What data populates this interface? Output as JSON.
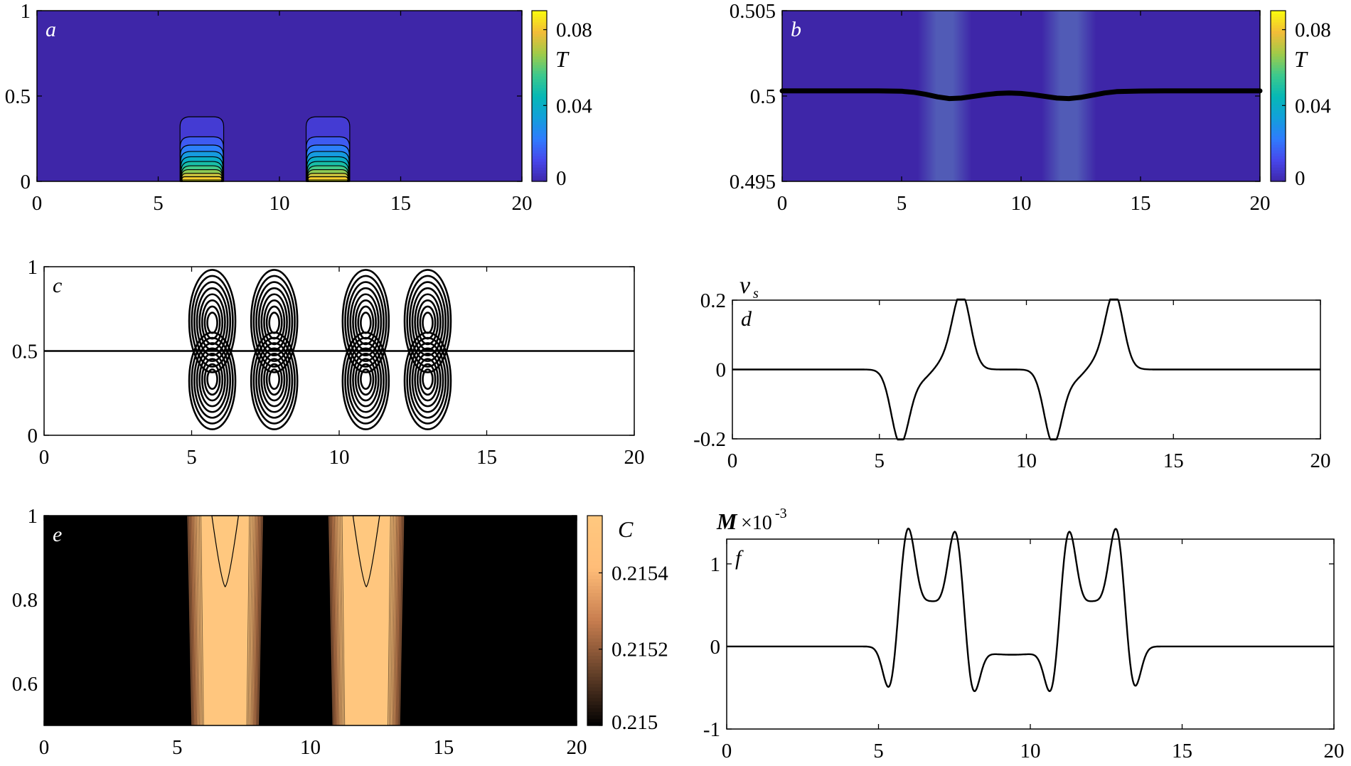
{
  "figure": "Six-panel simulation figure (a-f)",
  "chart_data": [
    {
      "panel": "a",
      "type": "heatmap",
      "label": "a",
      "title": "",
      "xlabel": "",
      "ylabel": "",
      "xlim": [
        0,
        20
      ],
      "ylim": [
        0,
        1
      ],
      "xticks": [
        "0",
        "5",
        "10",
        "15",
        "20"
      ],
      "yticks": [
        "0",
        "0.5",
        "1"
      ],
      "colorbar": {
        "label": "T",
        "range": [
          0,
          0.09
        ],
        "ticks": [
          "0",
          "0.04",
          "0.08"
        ],
        "colormap": "parula"
      },
      "hot_regions": [
        {
          "x": [
            5.9,
            7.7
          ]
        },
        {
          "x": [
            11.1,
            12.9
          ]
        }
      ],
      "max_value": 0.09,
      "contour_levels": 11
    },
    {
      "panel": "b",
      "type": "heatmap",
      "label": "b",
      "xlim": [
        0,
        20
      ],
      "ylim": [
        0.495,
        0.505
      ],
      "xticks": [
        "0",
        "5",
        "10",
        "15",
        "20"
      ],
      "yticks": [
        "0.495",
        "0.5",
        "0.505"
      ],
      "colorbar": {
        "label": "T",
        "range": [
          0,
          0.09
        ],
        "ticks": [
          "0",
          "0.04",
          "0.08"
        ],
        "colormap": "parula"
      },
      "interface": {
        "x": [
          0,
          4,
          5,
          5.5,
          6,
          6.5,
          7,
          7.5,
          8,
          8.5,
          9,
          9.5,
          10,
          10.5,
          11,
          11.5,
          12,
          12.5,
          13,
          13.5,
          14,
          15,
          16,
          20
        ],
        "y": [
          0.5003,
          0.5003,
          0.50028,
          0.50022,
          0.5001,
          0.49995,
          0.49985,
          0.49988,
          0.49998,
          0.50008,
          0.50015,
          0.50018,
          0.50015,
          0.50008,
          0.49998,
          0.49988,
          0.49985,
          0.49992,
          0.50005,
          0.50018,
          0.50026,
          0.50029,
          0.5003,
          0.5003
        ]
      }
    },
    {
      "panel": "c",
      "type": "contour",
      "label": "c",
      "xlim": [
        0,
        20
      ],
      "ylim": [
        0,
        1
      ],
      "xticks": [
        "0",
        "5",
        "10",
        "15",
        "20"
      ],
      "yticks": [
        "0",
        "0.5",
        "1"
      ],
      "interface_y": 0.5,
      "vortex_x": [
        5.7,
        7.8,
        10.9,
        13.0
      ],
      "vortex_y": [
        0.665,
        0.335
      ],
      "rings_per_cell": 8
    },
    {
      "panel": "d",
      "type": "line",
      "label": "d",
      "ylabel": "v",
      "ylabel_sub": "s",
      "xlim": [
        0,
        20
      ],
      "ylim": [
        -0.2,
        0.2
      ],
      "xticks": [
        "0",
        "5",
        "10",
        "15",
        "20"
      ],
      "yticks": [
        "-0.2",
        "0",
        "0.2"
      ],
      "pulses": [
        {
          "x0": 5.7,
          "amp": -0.2,
          "width": 0.3
        },
        {
          "x0": 7.8,
          "amp": 0.2,
          "width": 0.3
        },
        {
          "x0": 10.9,
          "amp": -0.2,
          "width": 0.3
        },
        {
          "x0": 13.0,
          "amp": 0.2,
          "width": 0.3
        }
      ],
      "pulse_tails": [
        {
          "x0": 6.6,
          "amp": -0.06,
          "width": 0.55
        },
        {
          "x0": 7.1,
          "amp": 0.06,
          "width": 0.55
        },
        {
          "x0": 11.8,
          "amp": -0.06,
          "width": 0.55
        },
        {
          "x0": 12.3,
          "amp": 0.06,
          "width": 0.55
        }
      ]
    },
    {
      "panel": "e",
      "type": "heatmap",
      "label": "e",
      "xlim": [
        0,
        20
      ],
      "ylim": [
        0.5,
        1
      ],
      "xticks": [
        "0",
        "5",
        "10",
        "15",
        "20"
      ],
      "yticks": [
        "0.6",
        "0.8",
        "1"
      ],
      "colorbar": {
        "label": "C",
        "range": [
          0.215,
          0.21555
        ],
        "ticks": [
          "0.215",
          "0.2152",
          "0.2154"
        ],
        "colormap": "copper"
      },
      "bands": [
        {
          "center": 6.8,
          "core_halfwidth": 1.1,
          "halfwidth": 1.55
        },
        {
          "center": 12.1,
          "core_halfwidth": 1.1,
          "halfwidth": 1.55
        }
      ],
      "contour_levels": 10
    },
    {
      "panel": "f",
      "type": "line",
      "label": "f",
      "ylabel": "M",
      "exponent_label": "×10",
      "exponent_power": "-3",
      "xlim": [
        0,
        20
      ],
      "ylim": [
        -1,
        1.3
      ],
      "xticks": [
        "0",
        "5",
        "10",
        "15",
        "20"
      ],
      "yticks": [
        "-1",
        "0",
        "1"
      ],
      "pulses": [
        {
          "x0": 5.38,
          "amp": -0.58,
          "width": 0.22
        },
        {
          "x0": 5.95,
          "amp": 1.25,
          "width": 0.25
        },
        {
          "x0": 6.75,
          "amp": 0.55,
          "width": 0.55
        },
        {
          "x0": 7.55,
          "amp": 1.25,
          "width": 0.25
        },
        {
          "x0": 8.1,
          "amp": -0.58,
          "width": 0.22
        },
        {
          "x0": 10.7,
          "amp": -0.58,
          "width": 0.22
        },
        {
          "x0": 11.25,
          "amp": 1.25,
          "width": 0.25
        },
        {
          "x0": 12.05,
          "amp": 0.55,
          "width": 0.55
        },
        {
          "x0": 12.85,
          "amp": 1.25,
          "width": 0.25
        },
        {
          "x0": 13.4,
          "amp": -0.58,
          "width": 0.22
        },
        {
          "x0": 9.4,
          "amp": -0.1,
          "width": 1.4
        }
      ]
    }
  ]
}
